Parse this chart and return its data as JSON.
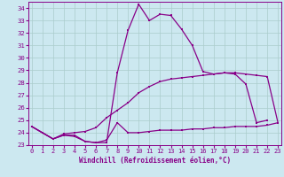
{
  "xlabel": "Windchill (Refroidissement éolien,°C)",
  "background_color": "#cce8f0",
  "grid_color": "#aacccc",
  "line_color": "#880088",
  "x": [
    0,
    1,
    2,
    3,
    4,
    5,
    6,
    7,
    8,
    9,
    10,
    11,
    12,
    13,
    14,
    15,
    16,
    17,
    18,
    19,
    20,
    21,
    22,
    23
  ],
  "line1": [
    24.5,
    24.0,
    23.5,
    23.8,
    23.8,
    23.3,
    23.2,
    23.2,
    28.8,
    32.2,
    34.3,
    33.0,
    33.5,
    33.4,
    32.3,
    31.0,
    28.9,
    28.7,
    28.8,
    28.7,
    27.9,
    24.8,
    25.0,
    null
  ],
  "line2": [
    24.5,
    24.0,
    23.5,
    23.9,
    24.0,
    24.1,
    24.4,
    25.2,
    25.8,
    26.4,
    27.2,
    27.7,
    28.1,
    28.3,
    28.4,
    28.5,
    28.6,
    28.7,
    28.8,
    28.8,
    28.7,
    28.6,
    28.5,
    24.8
  ],
  "line3": [
    24.5,
    24.0,
    23.5,
    23.8,
    23.7,
    23.3,
    23.2,
    23.4,
    24.8,
    24.0,
    24.0,
    24.1,
    24.2,
    24.2,
    24.2,
    24.3,
    24.3,
    24.4,
    24.4,
    24.5,
    24.5,
    24.5,
    24.6,
    24.8
  ],
  "ylim": [
    23,
    34.5
  ],
  "yticks": [
    23,
    24,
    25,
    26,
    27,
    28,
    29,
    30,
    31,
    32,
    33,
    34
  ],
  "xticks": [
    0,
    1,
    2,
    3,
    4,
    5,
    6,
    7,
    8,
    9,
    10,
    11,
    12,
    13,
    14,
    15,
    16,
    17,
    18,
    19,
    20,
    21,
    22,
    23
  ]
}
